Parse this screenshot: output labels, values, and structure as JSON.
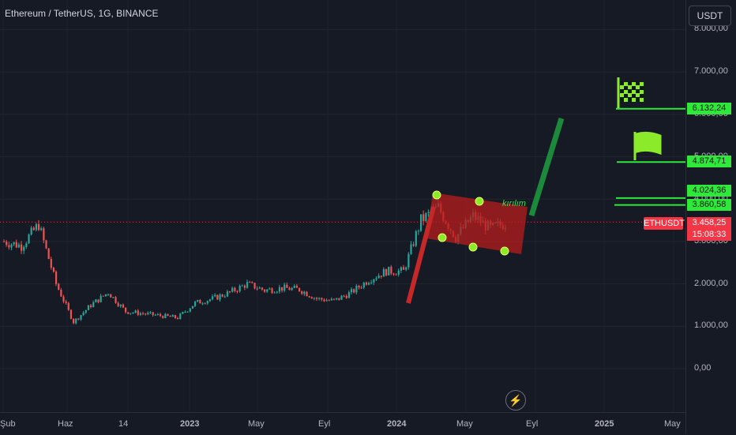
{
  "header": {
    "title": "Ethereum / TetherUS, 1G, BINANCE",
    "currency_button": "USDT"
  },
  "price_axis": {
    "ticks": [
      "8.000,00",
      "7.000,00",
      "6.000,00",
      "5.000,00",
      "4.000,00",
      "3.000,00",
      "2.000,00",
      "1.000,00",
      "0,00"
    ]
  },
  "time_axis": {
    "ticks": [
      "Şub",
      "Haz",
      "14",
      "2023",
      "May",
      "Eyl",
      "2024",
      "May",
      "Eyl",
      "2025",
      "May"
    ]
  },
  "price_tags": {
    "target2": "6.132,24",
    "target1": "4.874,71",
    "level1": "4.024,36",
    "level2": "3.860,58",
    "current_price": "3.458,25",
    "countdown": "15:08:33",
    "symbol": "ETHUSDT"
  },
  "annotations": {
    "breakout_label": "kırılım"
  },
  "icons": {
    "flag_target": "flag-icon",
    "finish_target": "checkered-flag-icon",
    "alert": "lightning-icon"
  },
  "colors": {
    "up": "#26a69a",
    "down": "#ef5350",
    "channel": "#b71c1c",
    "target_line": "#2ee83a",
    "flagpole": "#c62828",
    "projection": "#1b8a3a"
  },
  "chart_data": {
    "type": "line",
    "title": "Ethereum / TetherUS, 1G, BINANCE",
    "ylim": [
      0,
      8000
    ],
    "x": [
      "2022-02",
      "2022-03",
      "2022-04",
      "2022-05",
      "2022-06",
      "2022-07",
      "2022-08",
      "2022-09",
      "2022-10",
      "2022-11",
      "2022-12",
      "2023-01",
      "2023-02",
      "2023-03",
      "2023-04",
      "2023-05",
      "2023-06",
      "2023-07",
      "2023-08",
      "2023-09",
      "2023-10",
      "2023-11",
      "2023-12",
      "2024-01",
      "2024-02",
      "2024-03",
      "2024-04",
      "2024-05",
      "2024-06",
      "2024-07"
    ],
    "series": [
      {
        "values": [
          3000,
          2900,
          3400,
          2000,
          1100,
          1500,
          1800,
          1350,
          1300,
          1250,
          1200,
          1550,
          1650,
          1800,
          2000,
          1850,
          1900,
          1870,
          1650,
          1600,
          1800,
          2100,
          2300,
          2300,
          3500,
          3800,
          3100,
          3600,
          3300,
          3458
        ]
      }
    ],
    "horizontal_levels": [
      6132.24,
      4874.71,
      4024.36,
      3860.58,
      3458.25
    ],
    "grid": true
  }
}
